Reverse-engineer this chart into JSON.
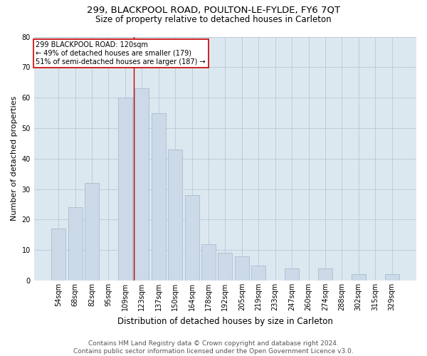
{
  "title1": "299, BLACKPOOL ROAD, POULTON-LE-FYLDE, FY6 7QT",
  "title2": "Size of property relative to detached houses in Carleton",
  "xlabel": "Distribution of detached houses by size in Carleton",
  "ylabel": "Number of detached properties",
  "categories": [
    "54sqm",
    "68sqm",
    "82sqm",
    "95sqm",
    "109sqm",
    "123sqm",
    "137sqm",
    "150sqm",
    "164sqm",
    "178sqm",
    "192sqm",
    "205sqm",
    "219sqm",
    "233sqm",
    "247sqm",
    "260sqm",
    "274sqm",
    "288sqm",
    "302sqm",
    "315sqm",
    "329sqm"
  ],
  "values": [
    17,
    24,
    32,
    0,
    60,
    63,
    55,
    43,
    28,
    12,
    9,
    8,
    5,
    0,
    4,
    0,
    4,
    0,
    2,
    0,
    2
  ],
  "bar_color": "#ccd9e8",
  "bar_edgecolor": "#a8becc",
  "vline_x": 4.5,
  "vline_color": "#cc0000",
  "annotation_text": "299 BLACKPOOL ROAD: 120sqm\n← 49% of detached houses are smaller (179)\n51% of semi-detached houses are larger (187) →",
  "annotation_box_color": "#ffffff",
  "annotation_box_edgecolor": "#cc0000",
  "ylim": [
    0,
    80
  ],
  "yticks": [
    0,
    10,
    20,
    30,
    40,
    50,
    60,
    70,
    80
  ],
  "bg_color": "#dce8f0",
  "footnote": "Contains HM Land Registry data © Crown copyright and database right 2024.\nContains public sector information licensed under the Open Government Licence v3.0.",
  "title1_fontsize": 9.5,
  "title2_fontsize": 8.5,
  "xlabel_fontsize": 8.5,
  "ylabel_fontsize": 8,
  "footnote_fontsize": 6.5,
  "tick_fontsize": 7,
  "annot_fontsize": 7
}
